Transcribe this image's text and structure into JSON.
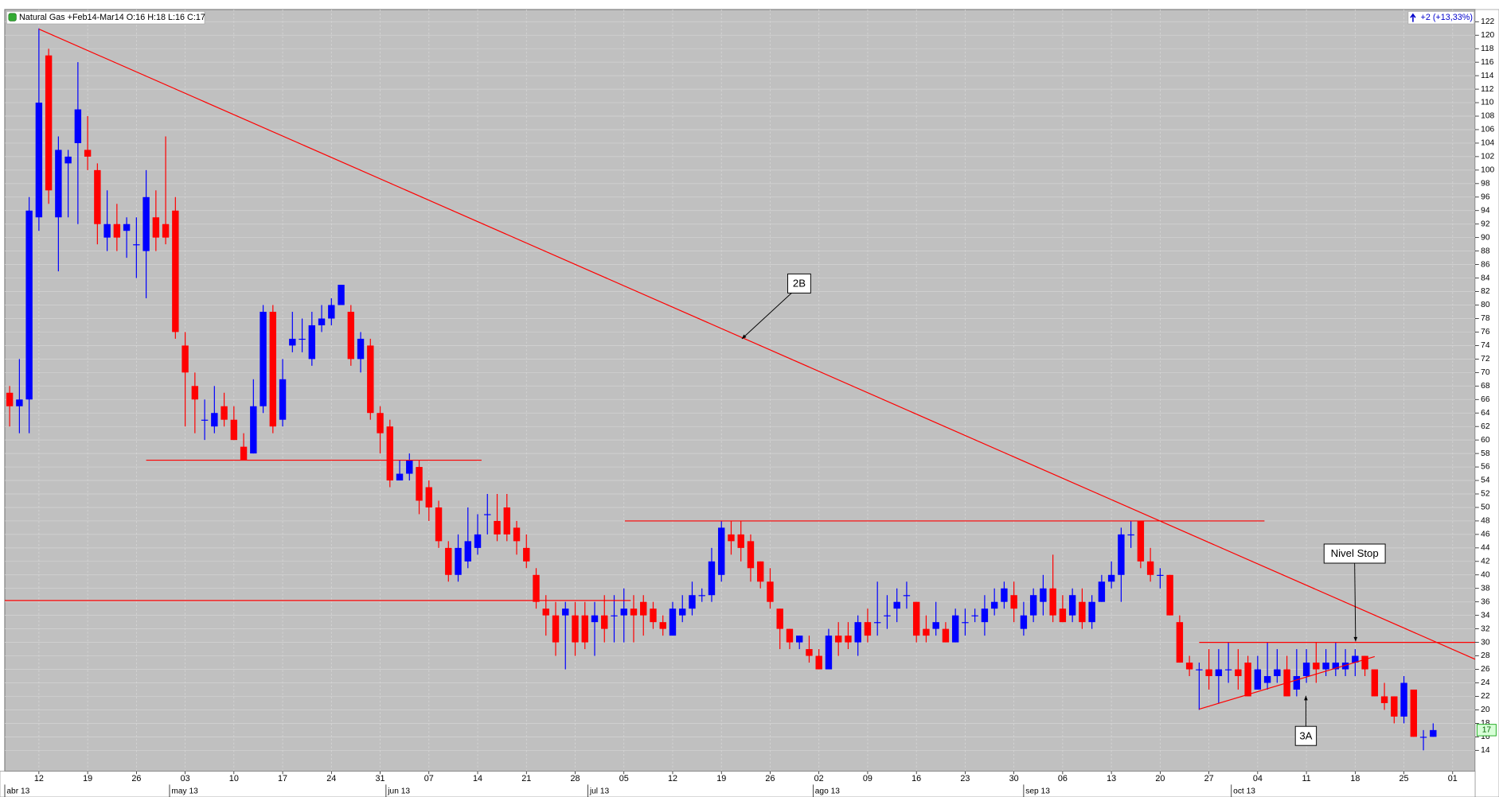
{
  "chart_data": {
    "type": "candlestick",
    "title": "Natural Gas +Feb14-Mar14 O:16 H:18 L:16 C:17",
    "change_label": "+2 (+13,33%)",
    "last_price": 17,
    "up_color": "#0000ff",
    "down_color": "#ff0000",
    "line_color": "#ff0000",
    "grid": true,
    "xlim": [
      -0.5,
      150.3
    ],
    "ylim": [
      10.9,
      123.8
    ],
    "yticks": [
      14,
      16,
      18,
      20,
      22,
      24,
      26,
      28,
      30,
      32,
      34,
      36,
      38,
      40,
      42,
      44,
      46,
      48,
      50,
      52,
      54,
      56,
      58,
      60,
      62,
      64,
      66,
      68,
      70,
      72,
      74,
      76,
      78,
      80,
      82,
      84,
      86,
      88,
      90,
      92,
      94,
      96,
      98,
      100,
      102,
      104,
      106,
      108,
      110,
      112,
      114,
      116,
      118,
      120,
      122
    ],
    "xticks": [
      {
        "value": 3,
        "label": "12"
      },
      {
        "value": 8,
        "label": "19"
      },
      {
        "value": 13,
        "label": "26"
      },
      {
        "value": 18,
        "label": "03"
      },
      {
        "value": 23,
        "label": "10"
      },
      {
        "value": 28,
        "label": "17"
      },
      {
        "value": 33,
        "label": "24"
      },
      {
        "value": 38,
        "label": "31"
      },
      {
        "value": 43,
        "label": "07"
      },
      {
        "value": 48,
        "label": "14"
      },
      {
        "value": 53,
        "label": "21"
      },
      {
        "value": 58,
        "label": "28"
      },
      {
        "value": 63,
        "label": "05"
      },
      {
        "value": 68,
        "label": "12"
      },
      {
        "value": 73,
        "label": "19"
      },
      {
        "value": 78,
        "label": "26"
      },
      {
        "value": 83,
        "label": "02"
      },
      {
        "value": 88,
        "label": "09"
      },
      {
        "value": 93,
        "label": "16"
      },
      {
        "value": 98,
        "label": "23"
      },
      {
        "value": 103,
        "label": "30"
      },
      {
        "value": 108,
        "label": "06"
      },
      {
        "value": 113,
        "label": "13"
      },
      {
        "value": 118,
        "label": "20"
      },
      {
        "value": 123,
        "label": "27"
      },
      {
        "value": 128,
        "label": "04"
      },
      {
        "value": 133,
        "label": "11"
      },
      {
        "value": 138,
        "label": "18"
      },
      {
        "value": 143,
        "label": "25"
      },
      {
        "value": 148,
        "label": "01"
      }
    ],
    "month_ticks": [
      {
        "value": -0.5,
        "label": "abr 13"
      },
      {
        "value": 16.4,
        "label": "may 13"
      },
      {
        "value": 38.6,
        "label": "jun 13"
      },
      {
        "value": 59.3,
        "label": "jul 13"
      },
      {
        "value": 82.4,
        "label": "ago 13"
      },
      {
        "value": 104,
        "label": "sep 13"
      },
      {
        "value": 125.3,
        "label": "oct 13"
      }
    ],
    "open": [
      67,
      65,
      66,
      93,
      117,
      93,
      101,
      104,
      103,
      100,
      90,
      92,
      91,
      89,
      88,
      93,
      92,
      94,
      74,
      68,
      63,
      62,
      65,
      63,
      59,
      58,
      65,
      79,
      63,
      74,
      75,
      72,
      77,
      78,
      80,
      79,
      72,
      74,
      64,
      62,
      54,
      55,
      56,
      53,
      50,
      44,
      40,
      42,
      44,
      49,
      48,
      50,
      47,
      44,
      40,
      35,
      34,
      34,
      34,
      34,
      33,
      34,
      34,
      34,
      35,
      36,
      35,
      33,
      31,
      34,
      35,
      37,
      37,
      40,
      46,
      46,
      45,
      42,
      39,
      35,
      32,
      30,
      29,
      28,
      26,
      31,
      31,
      30,
      33,
      33,
      34,
      35,
      37,
      36,
      32,
      32,
      32,
      30,
      33,
      34,
      33,
      35,
      36,
      37,
      32,
      34,
      36,
      38,
      35,
      34,
      36,
      33,
      36,
      39,
      40,
      46,
      48,
      42,
      40,
      40,
      33,
      27,
      26,
      26,
      25,
      26,
      26,
      27,
      23,
      24,
      25,
      26,
      23,
      25,
      27,
      26,
      26,
      26,
      27,
      28,
      26,
      22,
      22,
      19,
      23,
      16,
      16
    ],
    "high": [
      68,
      72,
      96,
      121,
      118,
      105,
      103,
      116,
      108,
      101,
      97,
      95,
      93,
      93,
      100,
      97,
      105,
      96,
      76,
      70,
      66,
      68,
      67,
      65,
      61,
      69,
      80,
      80,
      72,
      79,
      78,
      79,
      80,
      81,
      83,
      80,
      76,
      75,
      65,
      63,
      57,
      58,
      57,
      54,
      51,
      45,
      46,
      50,
      49,
      52,
      52,
      52,
      48,
      46,
      41,
      37,
      36,
      36,
      36,
      36,
      36,
      37,
      37,
      38,
      37,
      37,
      36,
      34,
      36,
      37,
      39,
      38,
      44,
      48,
      48,
      48,
      46,
      42,
      41,
      35,
      32,
      31,
      31,
      29,
      32,
      33,
      33,
      34,
      35,
      39,
      37,
      38,
      39,
      36,
      34,
      36,
      33,
      35,
      35,
      35,
      37,
      38,
      39,
      39,
      36,
      38,
      40,
      43,
      37,
      38,
      38,
      37,
      40,
      42,
      47,
      48,
      48,
      44,
      41,
      40,
      34,
      28,
      27,
      29,
      29,
      30,
      29,
      28,
      28,
      30,
      29,
      28,
      29,
      29,
      30,
      29,
      30,
      29,
      29,
      28,
      26,
      24,
      22,
      25,
      23,
      17,
      18
    ],
    "low": [
      62,
      61,
      61,
      91,
      95,
      85,
      93,
      92,
      100,
      89,
      88,
      88,
      87,
      84,
      81,
      88,
      89,
      75,
      62,
      61,
      60,
      61,
      62,
      60,
      57,
      58,
      64,
      61,
      62,
      73,
      73,
      71,
      76,
      77,
      80,
      71,
      70,
      63,
      58,
      53,
      54,
      54,
      49,
      48,
      44,
      39,
      39,
      41,
      43,
      46,
      45,
      45,
      43,
      41,
      35,
      31,
      28,
      26,
      28,
      29,
      28,
      30,
      30,
      30,
      30,
      31,
      32,
      31,
      31,
      33,
      34,
      36,
      36,
      39,
      43,
      42,
      39,
      38,
      35,
      29,
      29,
      29,
      27,
      26,
      26,
      28,
      29,
      28,
      30,
      31,
      32,
      33,
      35,
      30,
      30,
      31,
      30,
      30,
      31,
      33,
      31,
      34,
      35,
      33,
      31,
      33,
      34,
      33,
      33,
      33,
      32,
      32,
      36,
      38,
      36,
      44,
      41,
      39,
      38,
      34,
      27,
      25,
      20,
      23,
      21,
      24,
      23,
      22,
      23,
      23,
      24,
      22,
      22,
      24,
      24,
      25,
      25,
      25,
      25,
      25,
      22,
      20,
      18,
      18,
      16,
      14,
      16
    ],
    "close": [
      65,
      66,
      94,
      110,
      97,
      103,
      102,
      109,
      102,
      92,
      92,
      90,
      92,
      89,
      96,
      90,
      90,
      76,
      70,
      66,
      63,
      64,
      63,
      60,
      57,
      65,
      79,
      62,
      69,
      75,
      75,
      77,
      78,
      80,
      83,
      72,
      75,
      64,
      61,
      54,
      55,
      57,
      51,
      50,
      45,
      40,
      44,
      45,
      46,
      49,
      46,
      46,
      45,
      42,
      36,
      34,
      30,
      35,
      30,
      30,
      34,
      32,
      34,
      35,
      34,
      34,
      33,
      32,
      35,
      35,
      37,
      37,
      42,
      47,
      45,
      44,
      41,
      39,
      36,
      32,
      30,
      31,
      28,
      26,
      31,
      30,
      30,
      33,
      31,
      33,
      34,
      36,
      37,
      31,
      31,
      33,
      30,
      34,
      33,
      34,
      35,
      36,
      38,
      35,
      34,
      37,
      38,
      34,
      33,
      37,
      33,
      36,
      39,
      40,
      46,
      46,
      42,
      40,
      40,
      34,
      27,
      26,
      26,
      25,
      26,
      26,
      25,
      22,
      26,
      25,
      26,
      22,
      25,
      27,
      26,
      27,
      27,
      27,
      28,
      26,
      22,
      21,
      19,
      24,
      16,
      16,
      17
    ],
    "lines": [
      {
        "from": [
          3,
          120.9
        ],
        "to": [
          150.3,
          27.5
        ]
      },
      {
        "from": [
          14,
          57
        ],
        "to": [
          48.4,
          57
        ]
      },
      {
        "from": [
          -0.5,
          36.2
        ],
        "to": [
          63.7,
          36.2
        ]
      },
      {
        "from": [
          63.1,
          48
        ],
        "to": [
          128.7,
          48
        ]
      },
      {
        "from": [
          122,
          30
        ],
        "to": [
          150.3,
          30
        ]
      },
      {
        "from": [
          122,
          20.1
        ],
        "to": [
          140,
          27.9
        ]
      }
    ],
    "annotations": [
      "2B",
      "Nivel Stop",
      "3A"
    ]
  }
}
